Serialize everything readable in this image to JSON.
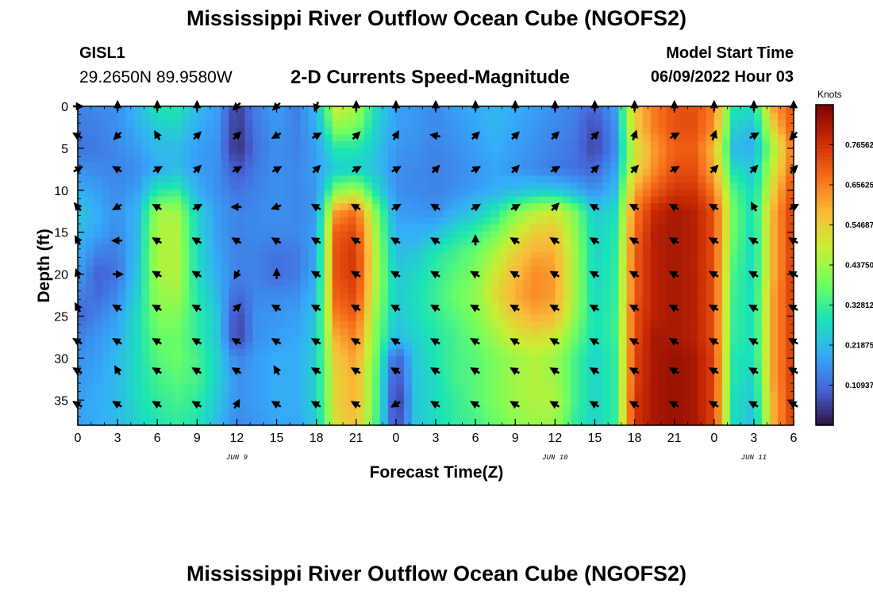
{
  "page": {
    "title": "Mississippi River Outflow Ocean Cube (NGOFS2)",
    "title_repeat": "Mississippi River Outflow Ocean Cube (NGOFS2)",
    "station": "GISL1",
    "coords": "29.2650N  89.9580W",
    "subtitle": "2-D Currents Speed-Magnitude",
    "model_start_label": "Model Start Time",
    "model_start_value": "06/09/2022 Hour 03"
  },
  "chart_data": {
    "type": "heatmap",
    "title": "2-D Currents Speed-Magnitude",
    "xlabel": "Forecast Time(Z)",
    "ylabel": "Depth (ft)",
    "x_ticks": [
      "0",
      "3",
      "6",
      "9",
      "12",
      "15",
      "18",
      "21",
      "0",
      "3",
      "6",
      "9",
      "12",
      "15",
      "18",
      "21",
      "0",
      "3",
      "6"
    ],
    "x_hours_range": [
      0,
      54
    ],
    "date_labels": [
      {
        "label": "JUN 9",
        "hour": 12
      },
      {
        "label": "JUN 10",
        "hour": 36
      },
      {
        "label": "JUN 11",
        "hour": 51
      }
    ],
    "y_ticks": [
      "0",
      "5",
      "10",
      "15",
      "20",
      "25",
      "30",
      "35"
    ],
    "ylim": [
      0,
      38
    ],
    "y_inverted": true,
    "colorbar": {
      "unit": "Knots",
      "ticks": [
        "0.10937",
        "0.21875",
        "0.32812",
        "0.43750",
        "0.54687",
        "0.65625",
        "0.76562"
      ],
      "range": [
        0.0,
        0.875
      ],
      "colors": [
        "#30123b",
        "#4662d7",
        "#36aaf9",
        "#1ae4b6",
        "#72fe5e",
        "#c8ef34",
        "#faba39",
        "#f66b19",
        "#ca2a04",
        "#7a0403"
      ]
    },
    "speed_field": {
      "hours": [
        0,
        1.5,
        3,
        4.5,
        6,
        7.5,
        9,
        10.5,
        12,
        13.5,
        15,
        16.5,
        18,
        19.5,
        21,
        22.5,
        24,
        25.5,
        27,
        28.5,
        30,
        31.5,
        33,
        34.5,
        36,
        37.5,
        39,
        40.5,
        42,
        43.5,
        45,
        46.5,
        48,
        49.5,
        51,
        52.5,
        54
      ],
      "depths": [
        0,
        2.5,
        5,
        7.5,
        10,
        12.5,
        15,
        17.5,
        20,
        22.5,
        25,
        27.5,
        30,
        32.5,
        35,
        37.5
      ],
      "values": [
        [
          0.14,
          0.15,
          0.16,
          0.22,
          0.3,
          0.3,
          0.22,
          0.18,
          0.05,
          0.14,
          0.18,
          0.13,
          0.22,
          0.5,
          0.45,
          0.28,
          0.18,
          0.17,
          0.15,
          0.18,
          0.2,
          0.22,
          0.2,
          0.18,
          0.16,
          0.14,
          0.1,
          0.18,
          0.56,
          0.66,
          0.72,
          0.72,
          0.65,
          0.3,
          0.28,
          0.62,
          0.72
        ],
        [
          0.13,
          0.14,
          0.16,
          0.2,
          0.25,
          0.26,
          0.2,
          0.17,
          0.04,
          0.13,
          0.17,
          0.14,
          0.2,
          0.42,
          0.4,
          0.26,
          0.18,
          0.17,
          0.15,
          0.17,
          0.19,
          0.21,
          0.19,
          0.17,
          0.15,
          0.13,
          0.07,
          0.16,
          0.55,
          0.66,
          0.72,
          0.72,
          0.64,
          0.26,
          0.22,
          0.55,
          0.72
        ],
        [
          0.12,
          0.13,
          0.15,
          0.18,
          0.22,
          0.22,
          0.18,
          0.16,
          0.03,
          0.12,
          0.16,
          0.14,
          0.18,
          0.3,
          0.3,
          0.24,
          0.17,
          0.16,
          0.14,
          0.16,
          0.18,
          0.2,
          0.18,
          0.16,
          0.14,
          0.12,
          0.06,
          0.15,
          0.5,
          0.62,
          0.7,
          0.7,
          0.58,
          0.22,
          0.2,
          0.45,
          0.68
        ],
        [
          0.16,
          0.15,
          0.14,
          0.16,
          0.2,
          0.22,
          0.18,
          0.16,
          0.08,
          0.13,
          0.16,
          0.15,
          0.18,
          0.25,
          0.26,
          0.23,
          0.16,
          0.15,
          0.14,
          0.15,
          0.17,
          0.19,
          0.17,
          0.15,
          0.13,
          0.12,
          0.1,
          0.18,
          0.52,
          0.64,
          0.72,
          0.72,
          0.6,
          0.28,
          0.24,
          0.5,
          0.7
        ],
        [
          0.2,
          0.18,
          0.15,
          0.18,
          0.3,
          0.32,
          0.2,
          0.16,
          0.12,
          0.14,
          0.16,
          0.15,
          0.17,
          0.4,
          0.45,
          0.28,
          0.16,
          0.15,
          0.14,
          0.16,
          0.18,
          0.2,
          0.22,
          0.24,
          0.24,
          0.2,
          0.16,
          0.22,
          0.6,
          0.7,
          0.76,
          0.76,
          0.66,
          0.35,
          0.26,
          0.55,
          0.74
        ],
        [
          0.24,
          0.2,
          0.16,
          0.22,
          0.44,
          0.44,
          0.26,
          0.18,
          0.14,
          0.15,
          0.16,
          0.15,
          0.17,
          0.62,
          0.68,
          0.4,
          0.18,
          0.17,
          0.16,
          0.2,
          0.24,
          0.3,
          0.4,
          0.46,
          0.5,
          0.4,
          0.24,
          0.28,
          0.66,
          0.78,
          0.82,
          0.8,
          0.72,
          0.38,
          0.28,
          0.6,
          0.76
        ],
        [
          0.22,
          0.19,
          0.15,
          0.22,
          0.46,
          0.46,
          0.27,
          0.18,
          0.14,
          0.15,
          0.15,
          0.15,
          0.18,
          0.7,
          0.74,
          0.44,
          0.2,
          0.2,
          0.22,
          0.28,
          0.32,
          0.38,
          0.48,
          0.55,
          0.56,
          0.42,
          0.26,
          0.3,
          0.68,
          0.8,
          0.82,
          0.8,
          0.72,
          0.38,
          0.27,
          0.6,
          0.76
        ],
        [
          0.2,
          0.14,
          0.13,
          0.23,
          0.46,
          0.46,
          0.28,
          0.19,
          0.14,
          0.14,
          0.12,
          0.13,
          0.19,
          0.72,
          0.76,
          0.46,
          0.22,
          0.24,
          0.3,
          0.34,
          0.38,
          0.46,
          0.55,
          0.6,
          0.6,
          0.44,
          0.26,
          0.31,
          0.7,
          0.8,
          0.82,
          0.8,
          0.72,
          0.36,
          0.27,
          0.6,
          0.76
        ],
        [
          0.18,
          0.1,
          0.12,
          0.24,
          0.45,
          0.46,
          0.28,
          0.2,
          0.14,
          0.14,
          0.11,
          0.13,
          0.2,
          0.72,
          0.76,
          0.46,
          0.24,
          0.27,
          0.32,
          0.36,
          0.4,
          0.5,
          0.58,
          0.64,
          0.62,
          0.44,
          0.26,
          0.32,
          0.7,
          0.8,
          0.82,
          0.8,
          0.72,
          0.34,
          0.27,
          0.6,
          0.76
        ],
        [
          0.14,
          0.11,
          0.15,
          0.26,
          0.43,
          0.44,
          0.3,
          0.22,
          0.1,
          0.15,
          0.15,
          0.16,
          0.22,
          0.7,
          0.74,
          0.45,
          0.25,
          0.28,
          0.33,
          0.38,
          0.42,
          0.52,
          0.6,
          0.64,
          0.62,
          0.44,
          0.27,
          0.32,
          0.7,
          0.8,
          0.82,
          0.8,
          0.72,
          0.33,
          0.28,
          0.62,
          0.76
        ],
        [
          0.1,
          0.14,
          0.18,
          0.28,
          0.4,
          0.4,
          0.32,
          0.24,
          0.06,
          0.16,
          0.17,
          0.18,
          0.24,
          0.66,
          0.7,
          0.42,
          0.24,
          0.28,
          0.32,
          0.36,
          0.4,
          0.48,
          0.56,
          0.6,
          0.58,
          0.42,
          0.28,
          0.33,
          0.72,
          0.8,
          0.82,
          0.8,
          0.72,
          0.32,
          0.28,
          0.62,
          0.76
        ],
        [
          0.14,
          0.17,
          0.2,
          0.28,
          0.38,
          0.38,
          0.32,
          0.24,
          0.05,
          0.16,
          0.18,
          0.19,
          0.25,
          0.6,
          0.66,
          0.4,
          0.22,
          0.26,
          0.3,
          0.34,
          0.38,
          0.44,
          0.5,
          0.52,
          0.5,
          0.38,
          0.28,
          0.33,
          0.72,
          0.82,
          0.82,
          0.8,
          0.72,
          0.32,
          0.28,
          0.62,
          0.76
        ],
        [
          0.16,
          0.18,
          0.22,
          0.28,
          0.36,
          0.38,
          0.34,
          0.26,
          0.14,
          0.18,
          0.2,
          0.2,
          0.26,
          0.56,
          0.62,
          0.38,
          0.08,
          0.24,
          0.3,
          0.34,
          0.36,
          0.4,
          0.44,
          0.46,
          0.44,
          0.34,
          0.26,
          0.32,
          0.74,
          0.82,
          0.84,
          0.82,
          0.74,
          0.3,
          0.28,
          0.62,
          0.76
        ],
        [
          0.17,
          0.19,
          0.22,
          0.28,
          0.34,
          0.36,
          0.34,
          0.26,
          0.16,
          0.18,
          0.2,
          0.2,
          0.26,
          0.54,
          0.6,
          0.36,
          0.06,
          0.24,
          0.28,
          0.34,
          0.36,
          0.4,
          0.44,
          0.46,
          0.44,
          0.34,
          0.26,
          0.32,
          0.74,
          0.82,
          0.84,
          0.82,
          0.74,
          0.3,
          0.26,
          0.62,
          0.76
        ],
        [
          0.18,
          0.2,
          0.22,
          0.28,
          0.32,
          0.34,
          0.32,
          0.24,
          0.16,
          0.18,
          0.2,
          0.2,
          0.26,
          0.54,
          0.6,
          0.36,
          0.03,
          0.24,
          0.28,
          0.32,
          0.36,
          0.4,
          0.44,
          0.46,
          0.46,
          0.34,
          0.26,
          0.32,
          0.76,
          0.82,
          0.84,
          0.82,
          0.74,
          0.28,
          0.24,
          0.6,
          0.76
        ],
        [
          0.18,
          0.2,
          0.22,
          0.26,
          0.3,
          0.32,
          0.3,
          0.22,
          0.15,
          0.17,
          0.19,
          0.19,
          0.25,
          0.52,
          0.58,
          0.34,
          0.05,
          0.24,
          0.28,
          0.32,
          0.34,
          0.38,
          0.42,
          0.44,
          0.44,
          0.32,
          0.26,
          0.32,
          0.76,
          0.82,
          0.84,
          0.82,
          0.74,
          0.28,
          0.22,
          0.6,
          0.76
        ]
      ]
    },
    "arrows": {
      "hours": [
        0,
        3,
        6,
        9,
        12,
        15,
        18,
        21,
        24,
        27,
        30,
        33,
        36,
        39,
        42,
        45,
        48,
        51,
        54
      ],
      "depths": [
        0,
        3.5,
        7.5,
        12,
        16,
        20,
        24,
        28,
        31.5,
        35.5
      ],
      "directions_deg": [
        [
          90,
          0,
          0,
          0,
          225,
          225,
          200,
          0,
          0,
          0,
          0,
          0,
          0,
          0,
          0,
          0,
          0,
          0,
          0
        ],
        [
          300,
          225,
          330,
          45,
          45,
          240,
          60,
          45,
          30,
          280,
          45,
          45,
          45,
          45,
          20,
          60,
          20,
          60,
          225
        ],
        [
          60,
          300,
          60,
          45,
          60,
          60,
          45,
          60,
          60,
          45,
          60,
          45,
          60,
          45,
          45,
          60,
          45,
          45,
          45
        ],
        [
          320,
          240,
          300,
          60,
          270,
          250,
          300,
          300,
          60,
          300,
          60,
          60,
          45,
          300,
          300,
          300,
          300,
          330,
          60
        ],
        [
          330,
          270,
          300,
          300,
          300,
          300,
          300,
          300,
          300,
          300,
          0,
          300,
          300,
          300,
          300,
          300,
          300,
          300,
          300
        ],
        [
          340,
          90,
          300,
          300,
          210,
          0,
          300,
          300,
          300,
          300,
          300,
          300,
          300,
          300,
          300,
          300,
          300,
          300,
          300
        ],
        [
          330,
          300,
          300,
          300,
          45,
          300,
          300,
          300,
          300,
          300,
          300,
          300,
          300,
          300,
          300,
          300,
          300,
          300,
          300
        ],
        [
          300,
          300,
          300,
          300,
          300,
          300,
          300,
          300,
          300,
          300,
          300,
          300,
          300,
          300,
          300,
          300,
          300,
          300,
          300
        ],
        [
          300,
          330,
          300,
          300,
          300,
          330,
          300,
          300,
          300,
          300,
          300,
          300,
          300,
          300,
          300,
          300,
          300,
          300,
          300
        ],
        [
          300,
          300,
          300,
          300,
          30,
          300,
          300,
          300,
          240,
          300,
          300,
          300,
          300,
          300,
          300,
          300,
          300,
          300,
          300
        ]
      ]
    }
  }
}
